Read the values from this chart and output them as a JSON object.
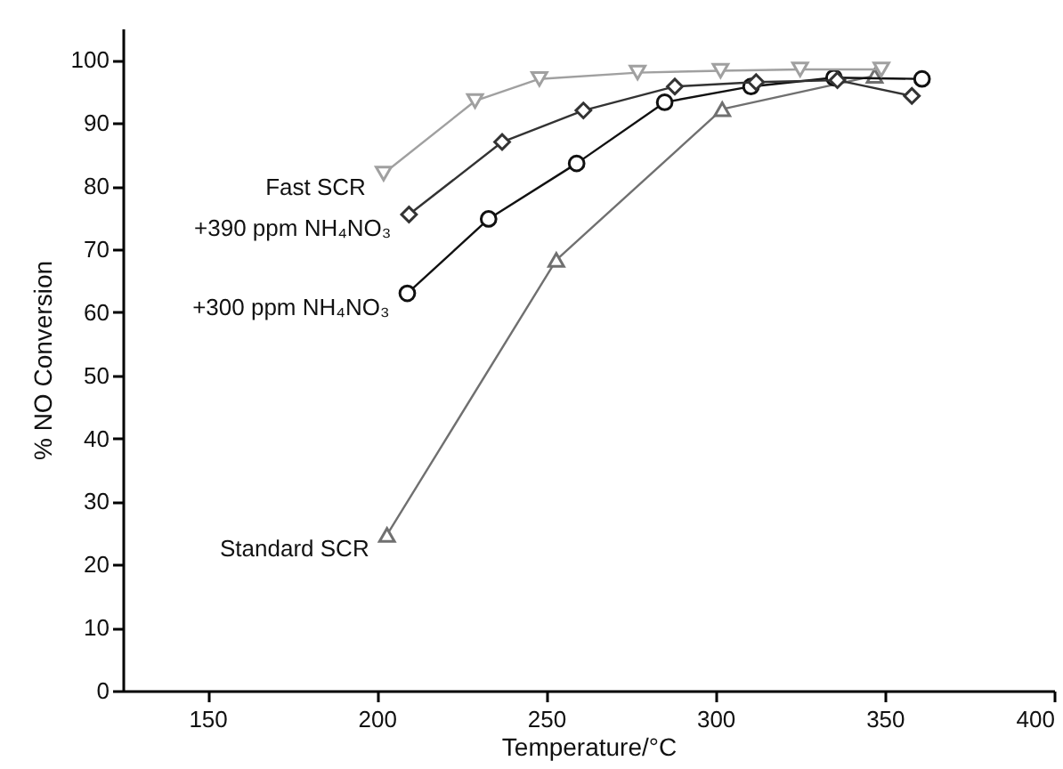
{
  "chart_data": {
    "type": "line",
    "xlabel": "Temperature/°C",
    "ylabel": "% NO Conversion",
    "xlim": [
      125,
      400
    ],
    "xticks": [
      150,
      200,
      250,
      300,
      350,
      400
    ],
    "ylim": [
      0,
      105
    ],
    "yticks": [
      0,
      10,
      20,
      30,
      40,
      50,
      60,
      70,
      80,
      90,
      100
    ],
    "grid": false,
    "series": [
      {
        "name": "Fast SCR",
        "color": "#a0a0a0",
        "marker": "triangle-down",
        "x": [
          202,
          229,
          248,
          277,
          301.5,
          325,
          349
        ],
        "values": [
          82,
          93.5,
          97,
          98,
          98.3,
          98.5,
          98.5
        ]
      },
      {
        "name": "+390 ppm NH₄NO₃",
        "color": "#333333",
        "marker": "diamond",
        "x": [
          209.5,
          237,
          261,
          288,
          312,
          336,
          358
        ],
        "values": [
          75.5,
          87,
          92,
          95.8,
          96.5,
          96.8,
          94.3
        ]
      },
      {
        "name": "+300 ppm NH₄NO₃",
        "color": "#111111",
        "marker": "circle",
        "x": [
          209,
          233,
          259,
          285,
          310.5,
          335,
          361
        ],
        "values": [
          63,
          74.8,
          83.6,
          93.3,
          95.8,
          97.2,
          97
        ]
      },
      {
        "name": "Standard SCR",
        "color": "#707070",
        "marker": "triangle",
        "x": [
          203,
          253,
          302,
          347
        ],
        "values": [
          24.7,
          68.3,
          92.2,
          97.5
        ]
      }
    ]
  }
}
